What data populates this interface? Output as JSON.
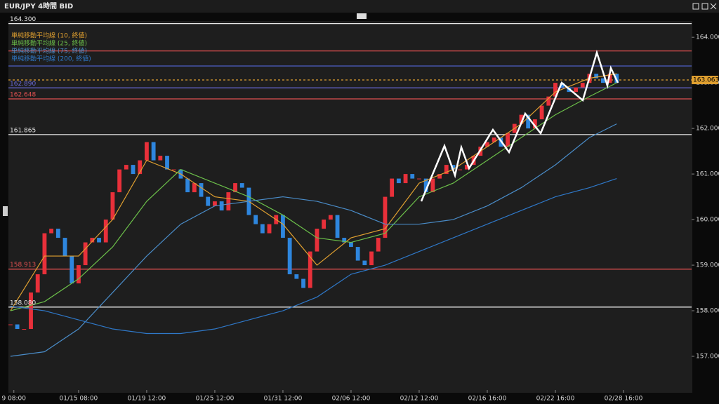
{
  "chart_data": {
    "type": "candlestick",
    "title": "EUR/JPY 4時間 BID",
    "xlim": [
      -0.6,
      200
    ],
    "ylim": [
      156.2,
      164.31
    ],
    "yticks": [
      {
        "value": 157,
        "label": "157.000"
      },
      {
        "value": 158,
        "label": "158.000"
      },
      {
        "value": 159,
        "label": "159.000"
      },
      {
        "value": 160,
        "label": "160.000"
      },
      {
        "value": 161,
        "label": "161.000"
      },
      {
        "value": 162,
        "label": "162.000"
      },
      {
        "value": 163,
        "label": "163.000"
      },
      {
        "value": 164,
        "label": "164.000"
      }
    ],
    "xticks": [
      {
        "value": 1,
        "label": "9 08:00"
      },
      {
        "value": 20,
        "label": "01/15 08:00"
      },
      {
        "value": 40,
        "label": "01/19 12:00"
      },
      {
        "value": 60,
        "label": "01/25 12:00"
      },
      {
        "value": 80,
        "label": "01/31 12:00"
      },
      {
        "value": 100,
        "label": "02/06 12:00"
      },
      {
        "value": 120,
        "label": "02/12 12:00"
      },
      {
        "value": 140,
        "label": "02/16 16:00"
      },
      {
        "value": 160,
        "label": "02/22 16:00"
      },
      {
        "value": 180,
        "label": "02/28 16:00"
      }
    ],
    "up_color": "#e8303a",
    "down_color": "#2e86de",
    "candles": {
      "x": [
        0,
        2,
        4,
        6,
        8,
        10,
        12,
        14,
        16,
        18,
        20,
        22,
        24,
        26,
        28,
        30,
        32,
        34,
        36,
        38,
        40,
        42,
        44,
        46,
        48,
        50,
        52,
        54,
        56,
        58,
        60,
        62,
        64,
        66,
        68,
        70,
        72,
        74,
        76,
        78,
        80,
        82,
        84,
        86,
        88,
        90,
        92,
        94,
        96,
        98,
        100,
        102,
        104,
        106,
        108,
        110,
        112,
        114,
        116,
        118,
        120,
        122,
        124,
        126,
        128,
        130,
        132,
        134,
        136,
        138,
        140,
        142,
        144,
        146,
        148,
        150,
        152,
        154,
        156,
        158,
        160,
        162,
        164,
        166,
        168,
        170,
        172,
        174,
        176,
        178
      ],
      "values": [
        157.7,
        157.6,
        157.6,
        158.4,
        158.8,
        159.7,
        159.8,
        159.6,
        159.2,
        158.6,
        159.0,
        159.5,
        159.6,
        159.5,
        160.0,
        160.6,
        161.1,
        161.2,
        161.0,
        161.3,
        161.7,
        161.3,
        161.4,
        161.1,
        161.1,
        160.9,
        160.6,
        160.8,
        160.5,
        160.3,
        160.4,
        160.2,
        160.6,
        160.8,
        160.7,
        160.1,
        159.9,
        159.7,
        159.9,
        160.1,
        159.6,
        158.8,
        158.7,
        158.5,
        159.3,
        159.8,
        160.0,
        160.1,
        159.6,
        159.5,
        159.4,
        159.1,
        159.0,
        159.3,
        159.6,
        160.5,
        160.9,
        160.8,
        161.0,
        160.9,
        160.9,
        160.6,
        160.9,
        161.0,
        161.2,
        161.1,
        161.1,
        161.2,
        161.4,
        161.6,
        161.7,
        161.8,
        161.6,
        161.9,
        162.1,
        162.3,
        162.0,
        162.2,
        162.5,
        162.7,
        163.0,
        162.9,
        162.8,
        162.9,
        163.0,
        163.2,
        163.1,
        163.0,
        163.2,
        163.0
      ]
    },
    "ma_x": [
      0,
      10,
      20,
      30,
      40,
      50,
      60,
      70,
      80,
      90,
      100,
      110,
      120,
      130,
      140,
      150,
      160,
      170,
      178
    ],
    "series": [
      {
        "name": "単純移動平均線 (10, 終値)",
        "color": "#e0a030",
        "values": [
          158.0,
          159.2,
          159.2,
          160.0,
          161.3,
          161.0,
          160.5,
          160.4,
          159.9,
          159.0,
          159.6,
          159.8,
          160.8,
          161.1,
          161.6,
          162.1,
          162.8,
          163.1,
          163.2
        ]
      },
      {
        "name": "単純移動平均線 (25, 終値)",
        "color": "#6cc04a",
        "values": [
          158.0,
          158.2,
          158.7,
          159.4,
          160.4,
          161.1,
          160.8,
          160.5,
          160.1,
          159.6,
          159.5,
          159.7,
          160.5,
          160.8,
          161.3,
          161.8,
          162.3,
          162.7,
          163.0
        ]
      },
      {
        "name": "単純移動平均線 (75, 終値)",
        "color": "#4a8cc8",
        "values": [
          157.0,
          157.1,
          157.6,
          158.4,
          159.2,
          159.9,
          160.3,
          160.4,
          160.5,
          160.4,
          160.2,
          159.9,
          159.9,
          160.0,
          160.3,
          160.7,
          161.2,
          161.8,
          162.1
        ]
      },
      {
        "name": "単純移動平均線 (200, 終値)",
        "color": "#2f78c8",
        "values": [
          158.1,
          158.0,
          157.8,
          157.6,
          157.5,
          157.5,
          157.6,
          157.8,
          158.0,
          158.3,
          158.8,
          159.0,
          159.3,
          159.6,
          159.9,
          160.2,
          160.5,
          160.7,
          160.9
        ]
      }
    ],
    "levels": [
      {
        "value": 164.3,
        "color": "#e8e8e8",
        "label": "164.300"
      },
      {
        "value": 163.7,
        "color": "#e05050"
      },
      {
        "value": 163.37,
        "color": "#4a5ab8"
      },
      {
        "value": 163.063,
        "color": "#e0a030",
        "label": "163.063",
        "label_side": "right",
        "dashed": true
      },
      {
        "value": 162.89,
        "color": "#6a6ad8",
        "label": "162.890"
      },
      {
        "value": 162.648,
        "color": "#e05050",
        "label": "162.648"
      },
      {
        "value": 161.865,
        "color": "#e8e8e8",
        "label": "161.865"
      },
      {
        "value": 158.913,
        "color": "#e05050",
        "label": "158.913"
      },
      {
        "value": 158.08,
        "color": "#e8e8e8",
        "label": "158.080"
      }
    ]
  }
}
